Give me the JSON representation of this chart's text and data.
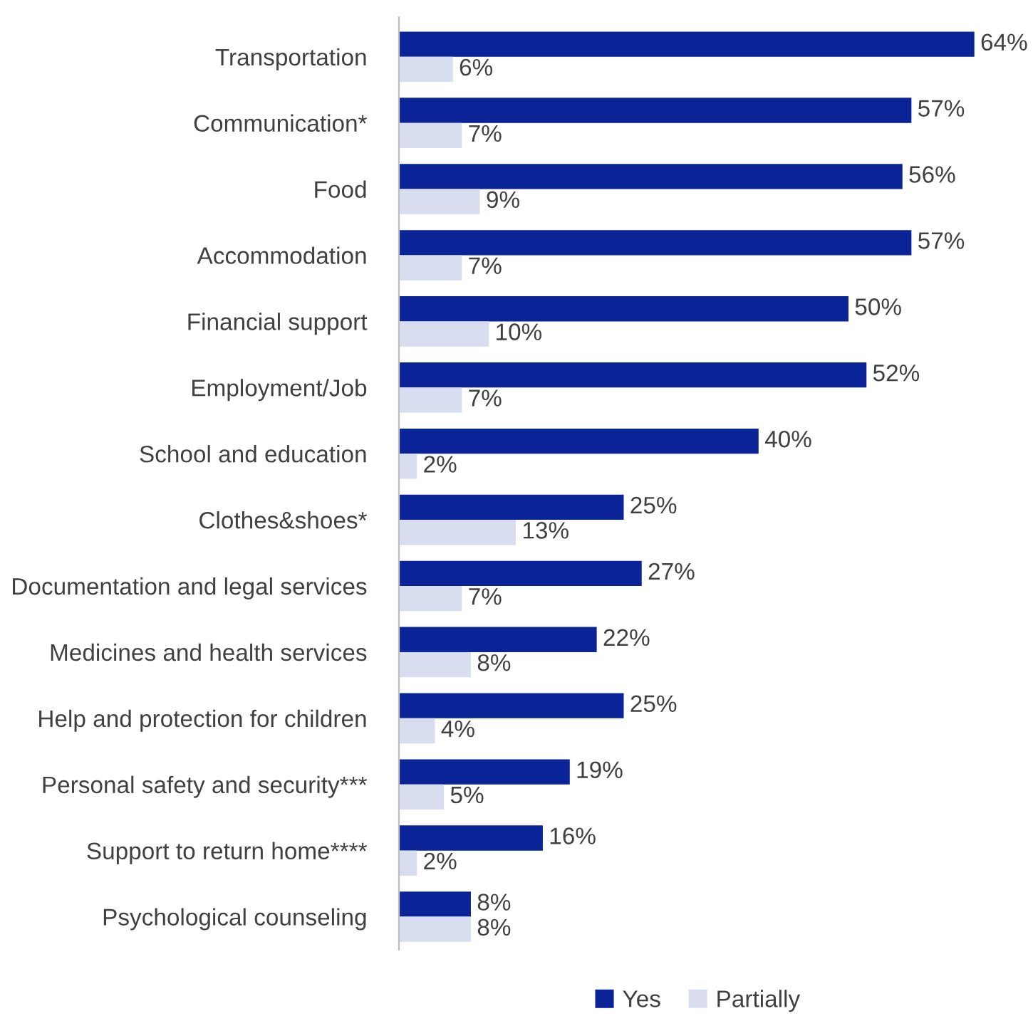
{
  "chart_data": {
    "type": "bar",
    "orientation": "horizontal",
    "categories": [
      "Transportation",
      "Communication*",
      "Food",
      "Accommodation",
      "Financial support",
      "Employment/Job",
      "School and education",
      "Clothes&shoes*",
      "Documentation and legal services",
      "Medicines and health services",
      "Help and protection for children",
      "Personal safety and security***",
      "Support to return home****",
      "Psychological counseling"
    ],
    "series": [
      {
        "name": "Yes",
        "color": "#0a2396",
        "values": [
          64,
          57,
          56,
          57,
          50,
          52,
          40,
          25,
          27,
          22,
          25,
          19,
          16,
          8
        ],
        "value_labels": [
          "64%",
          "57%",
          "56%",
          "57%",
          "50%",
          "52%",
          "40%",
          "25%",
          "27%",
          "22%",
          "25%",
          "19%",
          "16%",
          "8%"
        ]
      },
      {
        "name": "Partially",
        "color": "#d9ddf0",
        "values": [
          6,
          7,
          9,
          7,
          10,
          7,
          2,
          13,
          7,
          8,
          4,
          5,
          2,
          8
        ],
        "value_labels": [
          "6%",
          "7%",
          "9%",
          "7%",
          "10%",
          "7%",
          "2%",
          "13%",
          "7%",
          "8%",
          "4%",
          "5%",
          "2%",
          "8%"
        ]
      }
    ],
    "legend": "bottom",
    "grid": false
  }
}
